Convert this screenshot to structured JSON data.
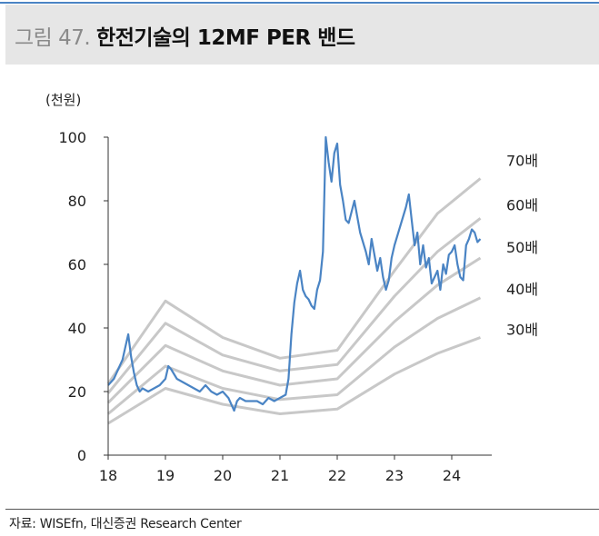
{
  "header": {
    "figure_number": "그림 47.",
    "title": "한전기술의 12MF PER 밴드"
  },
  "unit_label": "(천원)",
  "source": "자료: WISEfn, 대신증권 Research Center",
  "colors": {
    "accent": "#4a84c4",
    "band": "#c8c8c8",
    "price": "#4a84c4",
    "header_bg": "#e6e6e6"
  },
  "chart_data": {
    "type": "line",
    "title": "한전기술의 12MF PER 밴드",
    "ylabel": "(천원)",
    "xlabel": "",
    "ylim": [
      0,
      100
    ],
    "xlim": [
      18,
      24.7
    ],
    "x_ticks": [
      "18",
      "19",
      "20",
      "21",
      "22",
      "23",
      "24"
    ],
    "y_ticks": [
      "0",
      "20",
      "40",
      "60",
      "80",
      "100"
    ],
    "grid": false,
    "legend": "right-side inline labels",
    "bands": [
      {
        "name": "70배",
        "x": [
          18,
          19,
          20,
          21,
          22,
          23,
          23.75,
          24.5
        ],
        "y": [
          22.5,
          48.5,
          37,
          30.5,
          33,
          58,
          76,
          87
        ]
      },
      {
        "name": "60배",
        "x": [
          18,
          19,
          20,
          21,
          22,
          23,
          23.75,
          24.5
        ],
        "y": [
          19.5,
          41.5,
          31.5,
          26.5,
          28.5,
          50,
          64,
          74.5
        ]
      },
      {
        "name": "50배",
        "x": [
          18,
          19,
          20,
          21,
          22,
          23,
          23.75,
          24.5
        ],
        "y": [
          16.5,
          34.5,
          26.5,
          22,
          24,
          42,
          53.5,
          62
        ]
      },
      {
        "name": "40배",
        "x": [
          18,
          19,
          20,
          21,
          22,
          23,
          23.75,
          24.5
        ],
        "y": [
          13,
          28,
          21,
          17.5,
          19,
          34,
          43,
          49.5
        ]
      },
      {
        "name": "30배",
        "x": [
          18,
          19,
          20,
          21,
          22,
          23,
          23.75,
          24.5
        ],
        "y": [
          10,
          21,
          16,
          13,
          14.5,
          25.5,
          32,
          37
        ]
      }
    ],
    "price": {
      "x": [
        18.0,
        18.1,
        18.2,
        18.25,
        18.3,
        18.35,
        18.4,
        18.45,
        18.5,
        18.55,
        18.6,
        18.7,
        18.8,
        18.9,
        19.0,
        19.05,
        19.1,
        19.2,
        19.3,
        19.4,
        19.5,
        19.6,
        19.7,
        19.8,
        19.9,
        20.0,
        20.1,
        20.2,
        20.25,
        20.3,
        20.4,
        20.5,
        20.6,
        20.7,
        20.8,
        20.9,
        21.0,
        21.1,
        21.15,
        21.2,
        21.25,
        21.3,
        21.35,
        21.4,
        21.45,
        21.5,
        21.55,
        21.6,
        21.65,
        21.7,
        21.75,
        21.8,
        21.85,
        21.9,
        21.95,
        22.0,
        22.05,
        22.1,
        22.15,
        22.2,
        22.3,
        22.4,
        22.5,
        22.55,
        22.6,
        22.7,
        22.75,
        22.8,
        22.85,
        22.9,
        22.95,
        23.0,
        23.1,
        23.2,
        23.25,
        23.3,
        23.35,
        23.4,
        23.45,
        23.5,
        23.55,
        23.6,
        23.65,
        23.7,
        23.75,
        23.8,
        23.85,
        23.9,
        23.95,
        24.0,
        24.05,
        24.1,
        24.15,
        24.2,
        24.25,
        24.3,
        24.35,
        24.4,
        24.45,
        24.5
      ],
      "y": [
        22,
        24,
        28,
        30,
        34,
        38,
        31,
        26,
        22,
        20,
        21,
        20,
        21,
        22,
        24,
        28,
        27,
        24,
        23,
        22,
        21,
        20,
        22,
        20,
        19,
        20,
        18,
        14,
        17,
        18,
        17,
        17,
        17,
        16,
        18,
        17,
        18,
        19,
        24,
        38,
        48,
        54,
        58,
        52,
        50,
        49,
        47,
        46,
        52,
        55,
        64,
        100,
        92,
        86,
        95,
        98,
        85,
        80,
        74,
        73,
        80,
        70,
        64,
        60,
        68,
        58,
        62,
        56,
        52,
        55,
        62,
        66,
        72,
        78,
        82,
        74,
        66,
        70,
        60,
        66,
        59,
        62,
        54,
        56,
        58,
        52,
        60,
        57,
        63,
        64,
        66,
        60,
        56,
        55,
        66,
        68,
        71,
        70,
        67,
        68
      ]
    }
  }
}
